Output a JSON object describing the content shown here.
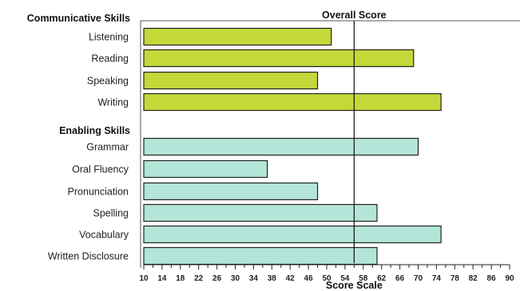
{
  "chart_data": {
    "type": "bar",
    "orientation": "horizontal",
    "title": "Overall Score",
    "xlabel": "Score Scale",
    "xlim": [
      10,
      90
    ],
    "xticks": [
      10,
      14,
      18,
      22,
      26,
      30,
      34,
      38,
      42,
      46,
      50,
      54,
      58,
      62,
      66,
      70,
      74,
      78,
      82,
      86,
      90
    ],
    "overall_score": 56,
    "groups": [
      {
        "name": "Communicative Skills",
        "color": "#c5d83a",
        "items": [
          {
            "label": "Listening",
            "value": 51
          },
          {
            "label": "Reading",
            "value": 69
          },
          {
            "label": "Speaking",
            "value": 48
          },
          {
            "label": "Writing",
            "value": 75
          }
        ]
      },
      {
        "name": "Enabling Skills",
        "color": "#b3e6d8",
        "items": [
          {
            "label": "Grammar",
            "value": 70
          },
          {
            "label": "Oral Fluency",
            "value": 37
          },
          {
            "label": "Pronunciation",
            "value": 48
          },
          {
            "label": "Spelling",
            "value": 61
          },
          {
            "label": "Vocabulary",
            "value": 75
          },
          {
            "label": "Written Disclosure",
            "value": 61
          }
        ]
      }
    ],
    "grid": false,
    "legend": "none"
  }
}
